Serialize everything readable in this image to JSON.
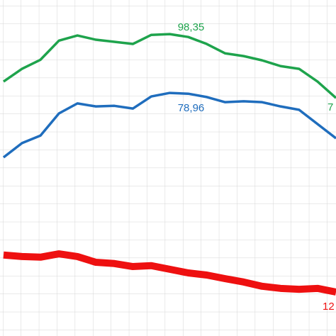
{
  "chart_data": {
    "type": "line",
    "categories": [
      null,
      null,
      null,
      null,
      null,
      null,
      null,
      null,
      null,
      null,
      null,
      null,
      null,
      null,
      null,
      null,
      null,
      null,
      null
    ],
    "ylim": [
      -1.2,
      109.6
    ],
    "grid": true,
    "series": [
      {
        "color": "#1ea34c",
        "values": [
          82.7,
          86.9,
          89.9,
          96.2,
          97.9,
          96.5,
          95.8,
          95.1,
          98.1,
          98.35,
          97.4,
          95.1,
          92.0,
          91.1,
          89.7,
          87.8,
          86.9,
          82.7,
          77.3
        ],
        "value_labels": [
          null,
          null,
          null,
          null,
          null,
          null,
          null,
          null,
          null,
          "98,35",
          null,
          null,
          null,
          null,
          null,
          null,
          null,
          null,
          null
        ]
      },
      {
        "color": "#1f6dbd",
        "values": [
          57.7,
          62.4,
          64.9,
          72.2,
          75.5,
          74.5,
          74.7,
          73.8,
          77.8,
          78.96,
          78.7,
          77.6,
          75.9,
          76.2,
          75.9,
          74.5,
          73.4,
          68.7,
          64.0
        ],
        "value_labels": [
          null,
          null,
          null,
          null,
          null,
          null,
          null,
          null,
          null,
          "78,96",
          null,
          null,
          null,
          null,
          null,
          null,
          null,
          null,
          null
        ]
      },
      {
        "color": "#ee1010",
        "values": [
          25.5,
          25.0,
          24.8,
          25.9,
          25.0,
          23.1,
          22.7,
          21.7,
          22.0,
          20.8,
          19.6,
          18.9,
          17.7,
          16.6,
          15.2,
          14.5,
          14.2,
          14.5,
          13.3
        ]
      }
    ],
    "annotations": [
      "7",
      "12"
    ]
  }
}
